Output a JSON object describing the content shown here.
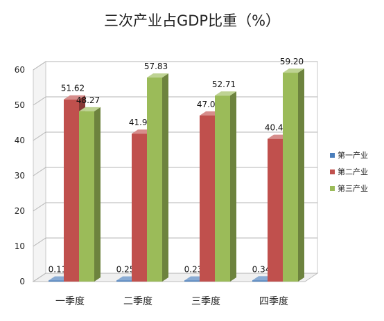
{
  "chart_data": {
    "type": "bar",
    "title": "三次产业占GDP比重（%）",
    "categories": [
      "一季度",
      "二季度",
      "三季度",
      "四季度"
    ],
    "series": [
      {
        "name": "第一产业",
        "values": [
          0.11,
          0.25,
          0.23,
          0.34
        ],
        "labels": [
          "0.11",
          "0.25",
          "0.23",
          "0.34"
        ],
        "color": "#4A7EBB"
      },
      {
        "name": "第二产业",
        "values": [
          51.62,
          41.92,
          47.06,
          40.46
        ],
        "labels": [
          "51.62",
          "41.92",
          "47.06",
          "40.46"
        ],
        "color": "#C0504D"
      },
      {
        "name": "第三产业",
        "values": [
          48.27,
          57.83,
          52.71,
          59.2
        ],
        "labels": [
          "48.27",
          "57.83",
          "52.71",
          "59.20"
        ],
        "color": "#9BBB59"
      }
    ],
    "yticks": [
      "0",
      "10",
      "20",
      "30",
      "40",
      "50",
      "60"
    ],
    "ylim": [
      0,
      60
    ],
    "grid": true,
    "legend_position": "right",
    "style": "3d-clustered-column"
  }
}
